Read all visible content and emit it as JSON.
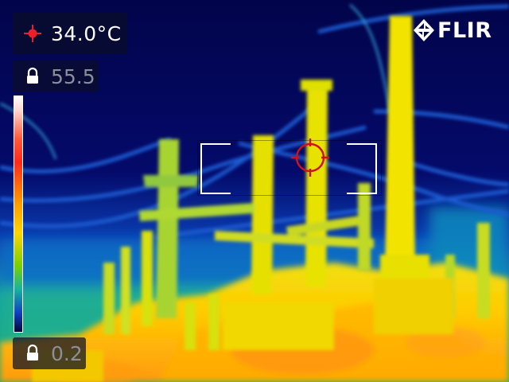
{
  "overlay": {
    "spot_temperature": "34.0°C",
    "range_max": "55.5",
    "range_min": "0.2",
    "logo_text": "FLIR"
  },
  "icons": {
    "spot": "crosshair-spot-icon",
    "max_lock": "lock-icon",
    "min_lock": "lock-icon",
    "brand": "flir-logo-icon",
    "reticle": "spot-meter-reticle-icon"
  },
  "colors": {
    "spot_marker": "#e8202a",
    "reticle": "#d0101c",
    "panel_bg": "#0a0e28",
    "locked_text": "#8a8f99",
    "palette_cold": "#05063a",
    "palette_hot": "#ffffff"
  },
  "palette": "iron/rainbow"
}
